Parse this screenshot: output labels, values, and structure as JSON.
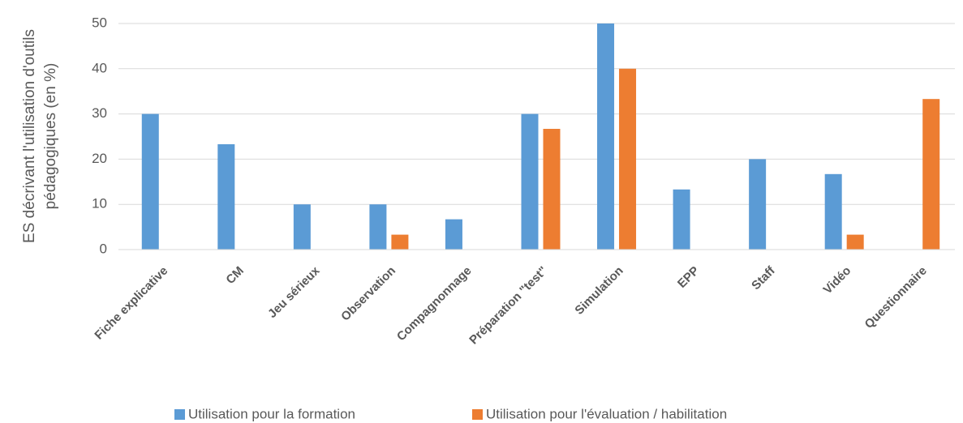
{
  "chart_data": {
    "type": "bar",
    "y_label": [
      "ES décrivant l'utilisation d'outils",
      "pédagogiques (en %)"
    ],
    "categories": [
      "Fiche explicative",
      "CM",
      "Jeu sérieux",
      "Observation",
      "Compagnonnage",
      "Préparation \"test\"",
      "Simulation",
      "EPP",
      "Staff",
      "Vidéo",
      "Questionnaire"
    ],
    "series": [
      {
        "name": "Utilisation pour la formation",
        "color": "#5b9bd5",
        "values": [
          30,
          23.3,
          10,
          10,
          6.7,
          30,
          50,
          13.3,
          20,
          16.7,
          0
        ]
      },
      {
        "name": "Utilisation pour l'évaluation / habilitation",
        "color": "#ed7d31",
        "values": [
          0,
          0,
          0,
          3.3,
          0,
          26.7,
          40,
          0,
          0,
          3.3,
          33.3
        ]
      }
    ],
    "ylim": [
      0,
      50
    ],
    "yticks": [
      0,
      10,
      20,
      30,
      40,
      50
    ],
    "grid": true,
    "legend": "bottom"
  }
}
